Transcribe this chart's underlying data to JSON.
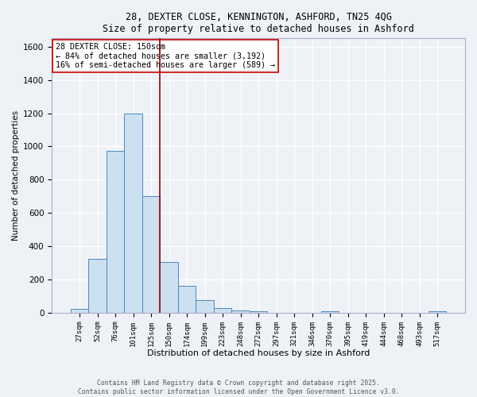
{
  "title_line1": "28, DEXTER CLOSE, KENNINGTON, ASHFORD, TN25 4QG",
  "title_line2": "Size of property relative to detached houses in Ashford",
  "xlabel": "Distribution of detached houses by size in Ashford",
  "ylabel": "Number of detached properties",
  "bar_labels": [
    "27sqm",
    "52sqm",
    "76sqm",
    "101sqm",
    "125sqm",
    "150sqm",
    "174sqm",
    "199sqm",
    "223sqm",
    "248sqm",
    "272sqm",
    "297sqm",
    "321sqm",
    "346sqm",
    "370sqm",
    "395sqm",
    "419sqm",
    "444sqm",
    "468sqm",
    "493sqm",
    "517sqm"
  ],
  "bar_values": [
    25,
    325,
    975,
    1200,
    700,
    305,
    160,
    75,
    30,
    15,
    10,
    0,
    0,
    0,
    10,
    0,
    0,
    0,
    0,
    0,
    10
  ],
  "bar_color": "#cce0f0",
  "bar_edgecolor": "#4d88bb",
  "vline_color": "#990000",
  "annotation_text": "28 DEXTER CLOSE: 150sqm\n← 84% of detached houses are smaller (3,192)\n16% of semi-detached houses are larger (589) →",
  "annotation_box_color": "#ffffff",
  "annotation_box_edgecolor": "#cc0000",
  "ylim": [
    0,
    1650
  ],
  "yticks": [
    0,
    200,
    400,
    600,
    800,
    1000,
    1200,
    1400,
    1600
  ],
  "background_color": "#eef2f7",
  "grid_color": "#ffffff",
  "footer_line1": "Contains HM Land Registry data © Crown copyright and database right 2025.",
  "footer_line2": "Contains public sector information licensed under the Open Government Licence v3.0."
}
